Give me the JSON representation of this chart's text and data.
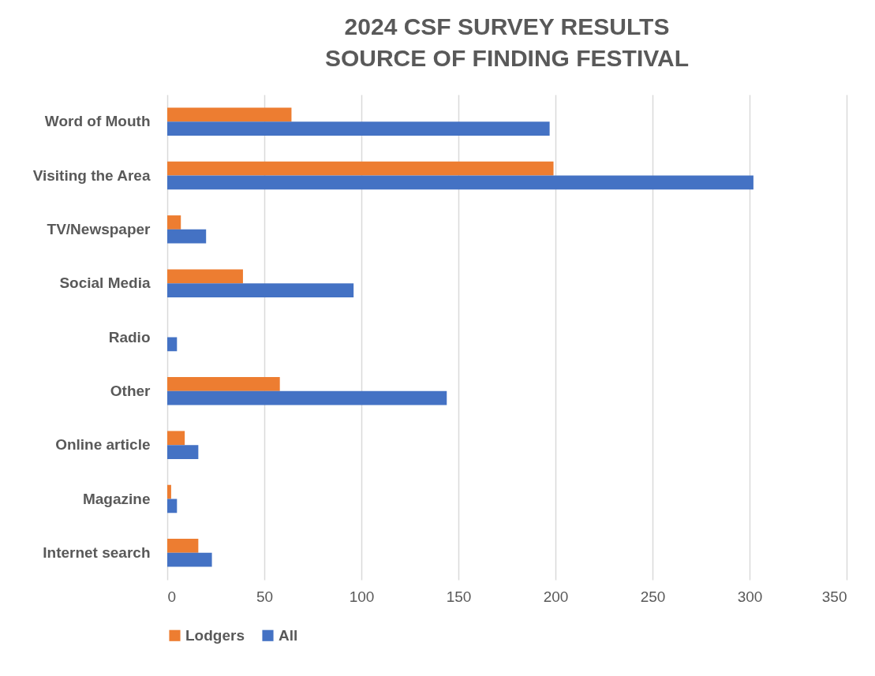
{
  "chart_data": {
    "type": "bar",
    "orientation": "horizontal",
    "title": "2024 CSF SURVEY RESULTS\nSOURCE OF FINDING FESTIVAL",
    "categories": [
      "Word of Mouth",
      "Visiting the Area",
      "TV/Newspaper",
      "Social Media",
      "Radio",
      "Other",
      "Online article",
      "Magazine",
      "Internet search"
    ],
    "series": [
      {
        "name": "Lodgers",
        "color": "#ed7d31",
        "values": [
          64,
          199,
          7,
          39,
          null,
          58,
          9,
          2,
          16
        ]
      },
      {
        "name": "All",
        "color": "#4472c4",
        "values": [
          197,
          302,
          20,
          96,
          5,
          144,
          16,
          5,
          23
        ]
      }
    ],
    "xlim": [
      0,
      350
    ],
    "xticks": [
      0,
      50,
      100,
      150,
      200,
      250,
      300,
      350
    ],
    "grid": "x",
    "legend": "bottom"
  }
}
